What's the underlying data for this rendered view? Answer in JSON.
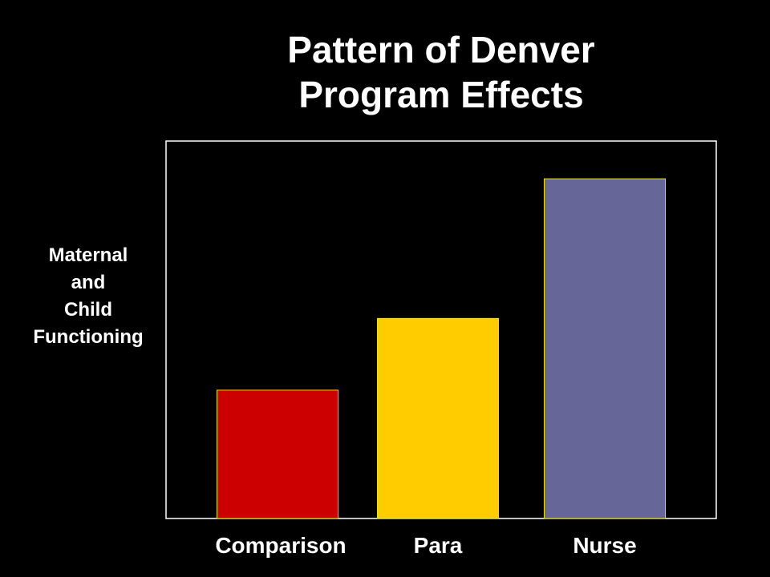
{
  "title": {
    "line1": "Pattern of Denver",
    "line2": "Program Effects"
  },
  "y_axis_label": {
    "line1": "Maternal",
    "line2": "and",
    "line3": "Child",
    "line4": "Functioning"
  },
  "chart_data": {
    "type": "bar",
    "title": "Pattern of Denver Program Effects",
    "ylabel": "Maternal and Child Functioning",
    "xlabel": "",
    "categories": [
      "Comparison",
      "Para",
      "Nurse"
    ],
    "values": [
      34,
      53,
      90
    ],
    "ylim": [
      0,
      100
    ],
    "colors": [
      "#cc0000",
      "#ffcc00",
      "#666699"
    ],
    "grid": false,
    "legend": "none"
  },
  "colors": {
    "background": "#000000",
    "text": "#ffffff",
    "frame": "#ffffff"
  }
}
